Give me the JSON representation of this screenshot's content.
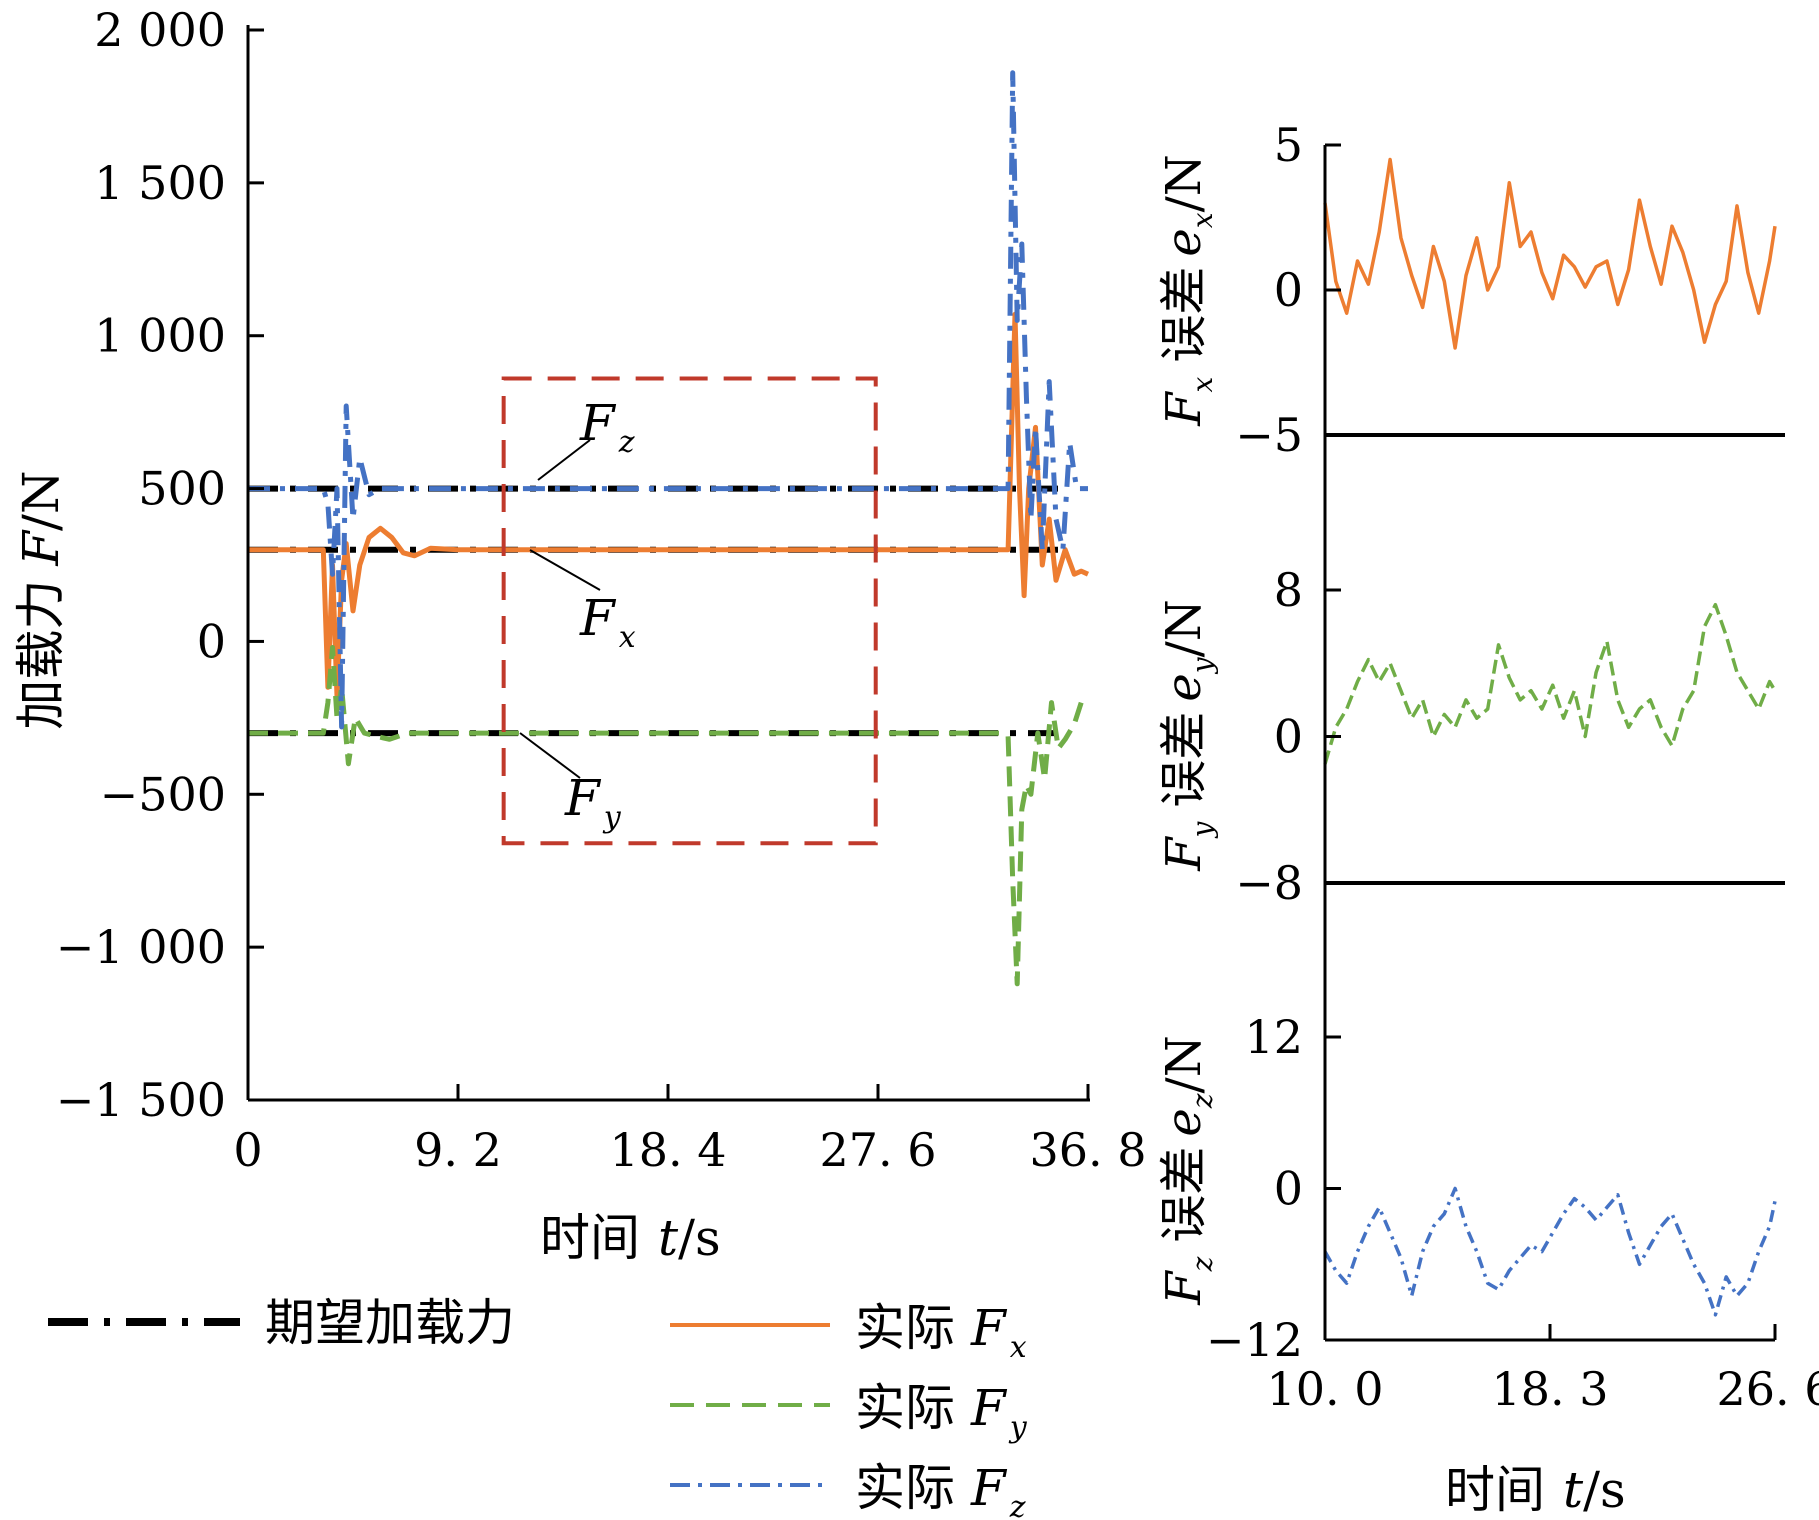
{
  "colors": {
    "desired": "#000000",
    "fx": "#ED7D31",
    "fy": "#70AD47",
    "fz": "#4472C4",
    "highlight_box": "#C0392B"
  },
  "chart_data": [
    {
      "type": "line",
      "xlabel": "时间 t/s",
      "ylabel": "加载力 F/N",
      "xlim": [
        0,
        36.8
      ],
      "ylim": [
        -1500,
        2000
      ],
      "xticks": [
        0,
        9.2,
        18.4,
        27.6,
        36.8
      ],
      "xtick_labels": [
        "0",
        "9. 2",
        "18. 4",
        "27. 6",
        "36. 8"
      ],
      "yticks": [
        2000,
        1500,
        1000,
        500,
        0,
        -500,
        -1000,
        -1500
      ],
      "ytick_labels": [
        "2 000",
        "1 500",
        "1 000",
        "500",
        "0",
        "−500",
        "−1 000",
        "−1 500"
      ],
      "annotations": [
        "F_z",
        "F_x",
        "F_y"
      ],
      "highlight_region": {
        "x": [
          11.2,
          27.5
        ],
        "y": [
          -660,
          860
        ]
      },
      "series": [
        {
          "name": "期望加载力",
          "style": "dash-dot",
          "color": "#000000",
          "segments": [
            {
              "x": [
                0,
                35.6
              ],
              "y": [
                500,
                500
              ]
            },
            {
              "x": [
                0,
                35.6
              ],
              "y": [
                300,
                300
              ]
            },
            {
              "x": [
                0,
                35.6
              ],
              "y": [
                -300,
                -300
              ]
            }
          ]
        },
        {
          "name": "实际 F_x",
          "style": "solid",
          "color": "#ED7D31",
          "x": [
            0,
            3.3,
            3.5,
            3.7,
            3.9,
            4.1,
            4.3,
            4.6,
            4.9,
            5.3,
            5.8,
            6.3,
            6.8,
            7.3,
            8.0,
            9.2,
            18.4,
            27.6,
            33.0,
            33.3,
            33.6,
            33.8,
            34.0,
            34.2,
            34.5,
            34.8,
            35.1,
            35.4,
            35.8,
            36.2,
            36.5,
            36.8
          ],
          "y": [
            300,
            300,
            -150,
            250,
            -180,
            200,
            320,
            100,
            250,
            340,
            370,
            340,
            290,
            280,
            305,
            300,
            300,
            300,
            300,
            300,
            1070,
            500,
            150,
            500,
            700,
            250,
            400,
            200,
            300,
            220,
            230,
            220
          ]
        },
        {
          "name": "实际 F_y",
          "style": "dashed",
          "color": "#70AD47",
          "x": [
            0,
            3.3,
            3.5,
            3.7,
            3.9,
            4.1,
            4.4,
            4.7,
            5.1,
            5.6,
            6.2,
            7.0,
            9.2,
            18.4,
            27.6,
            33.0,
            33.3,
            33.5,
            33.7,
            33.9,
            34.1,
            34.3,
            34.6,
            34.9,
            35.2,
            35.5,
            35.8,
            36.2,
            36.5
          ],
          "y": [
            -300,
            -300,
            -200,
            -20,
            -250,
            -150,
            -400,
            -250,
            -300,
            -310,
            -320,
            -300,
            -300,
            -300,
            -300,
            -300,
            -310,
            -780,
            -1120,
            -550,
            -470,
            -500,
            -300,
            -450,
            -200,
            -350,
            -320,
            -270,
            -200
          ]
        },
        {
          "name": "实际 F_z",
          "style": "dash-dot",
          "color": "#4472C4",
          "x": [
            0,
            3.3,
            3.5,
            3.7,
            3.9,
            4.1,
            4.3,
            4.6,
            4.9,
            5.3,
            5.8,
            6.5,
            9.2,
            18.4,
            27.6,
            33.0,
            33.3,
            33.5,
            33.7,
            33.9,
            34.1,
            34.3,
            34.5,
            34.8,
            35.1,
            35.4,
            35.7,
            36.0,
            36.3,
            36.8
          ],
          "y": [
            500,
            500,
            450,
            220,
            500,
            -280,
            770,
            400,
            600,
            480,
            500,
            500,
            500,
            500,
            500,
            500,
            500,
            1860,
            1050,
            1300,
            800,
            400,
            700,
            300,
            850,
            400,
            300,
            650,
            500,
            500
          ]
        }
      ]
    },
    {
      "type": "line",
      "ylabel": "F_x 误差 e_x/N",
      "ylim": [
        -5,
        5
      ],
      "yticks": [
        5,
        0,
        -5
      ],
      "ytick_labels": [
        "5",
        "0",
        "−5"
      ],
      "series": [
        {
          "name": "",
          "style": "solid",
          "color": "#ED7D31",
          "x": [
            10.0,
            10.4,
            10.8,
            11.2,
            11.6,
            12.0,
            12.4,
            12.8,
            13.2,
            13.6,
            14.0,
            14.4,
            14.8,
            15.2,
            15.6,
            16.0,
            16.4,
            16.8,
            17.2,
            17.6,
            18.0,
            18.4,
            18.8,
            19.2,
            19.6,
            20.0,
            20.4,
            20.8,
            21.2,
            21.6,
            22.0,
            22.4,
            22.8,
            23.2,
            23.6,
            24.0,
            24.4,
            24.8,
            25.2,
            25.6,
            26.0,
            26.4,
            26.6
          ],
          "y": [
            3.0,
            0.3,
            -0.8,
            1.0,
            0.2,
            2.0,
            4.5,
            1.8,
            0.5,
            -0.6,
            1.5,
            0.3,
            -2.0,
            0.5,
            1.8,
            0.0,
            0.8,
            3.7,
            1.5,
            2.0,
            0.6,
            -0.3,
            1.2,
            0.8,
            0.1,
            0.8,
            1.0,
            -0.5,
            0.7,
            3.1,
            1.5,
            0.2,
            2.2,
            1.3,
            0.0,
            -1.8,
            -0.5,
            0.3,
            2.9,
            0.6,
            -0.8,
            1.0,
            2.2
          ]
        }
      ]
    },
    {
      "type": "line",
      "ylabel": "F_y 误差 e_y/N",
      "ylim": [
        -8,
        8
      ],
      "yticks": [
        8,
        0,
        -8
      ],
      "ytick_labels": [
        "8",
        "0",
        "−8"
      ],
      "series": [
        {
          "name": "",
          "style": "dashed",
          "color": "#70AD47",
          "x": [
            10.0,
            10.4,
            10.8,
            11.2,
            11.6,
            12.0,
            12.4,
            12.8,
            13.2,
            13.6,
            14.0,
            14.4,
            14.8,
            15.2,
            15.6,
            16.0,
            16.4,
            16.8,
            17.2,
            17.6,
            18.0,
            18.4,
            18.8,
            19.2,
            19.6,
            20.0,
            20.4,
            20.8,
            21.2,
            21.6,
            22.0,
            22.4,
            22.8,
            23.2,
            23.6,
            24.0,
            24.4,
            24.8,
            25.2,
            25.6,
            26.0,
            26.4,
            26.6
          ],
          "y": [
            -1.5,
            0.5,
            1.5,
            3.0,
            4.2,
            3.0,
            4.0,
            2.5,
            1.0,
            2.0,
            0.0,
            1.2,
            0.5,
            2.0,
            1.0,
            1.5,
            5.0,
            3.2,
            2.0,
            2.5,
            1.5,
            2.8,
            1.0,
            2.5,
            0.0,
            3.5,
            5.2,
            2.0,
            0.5,
            1.5,
            2.0,
            0.5,
            -0.5,
            1.5,
            2.5,
            6.0,
            7.2,
            5.5,
            3.5,
            2.5,
            1.5,
            3.0,
            2.5
          ]
        }
      ]
    },
    {
      "type": "line",
      "ylabel": "F_z 误差 e_z/N",
      "ylim": [
        -12,
        12
      ],
      "yticks": [
        12,
        0,
        -12
      ],
      "ytick_labels": [
        "12",
        "0",
        "−12"
      ],
      "xlabel": "时间 t/s",
      "xlim": [
        10.0,
        26.6
      ],
      "xticks": [
        10.0,
        18.3,
        26.6
      ],
      "xtick_labels": [
        "10. 0",
        "18. 3",
        "26. 6"
      ],
      "series": [
        {
          "name": "",
          "style": "dash-dot",
          "color": "#4472C4",
          "x": [
            10.0,
            10.4,
            10.8,
            11.2,
            11.6,
            12.0,
            12.4,
            12.8,
            13.2,
            13.6,
            14.0,
            14.4,
            14.8,
            15.2,
            15.6,
            16.0,
            16.4,
            16.8,
            17.2,
            17.6,
            18.0,
            18.4,
            18.8,
            19.2,
            19.6,
            20.0,
            20.4,
            20.8,
            21.2,
            21.6,
            22.0,
            22.4,
            22.8,
            23.2,
            23.6,
            24.0,
            24.4,
            24.8,
            25.2,
            25.6,
            26.0,
            26.4,
            26.6
          ],
          "y": [
            -5.0,
            -6.5,
            -7.5,
            -5.0,
            -3.0,
            -1.5,
            -3.5,
            -5.5,
            -8.5,
            -5.0,
            -3.0,
            -2.0,
            0.0,
            -3.0,
            -5.0,
            -7.5,
            -8.0,
            -6.5,
            -5.5,
            -4.5,
            -5.0,
            -3.5,
            -2.0,
            -0.8,
            -1.5,
            -2.5,
            -1.5,
            -0.5,
            -3.5,
            -6.0,
            -4.5,
            -3.0,
            -2.0,
            -4.0,
            -6.0,
            -7.5,
            -10.0,
            -7.0,
            -8.5,
            -7.5,
            -5.0,
            -3.0,
            -1.0
          ]
        }
      ]
    }
  ],
  "legend": {
    "items": [
      {
        "label": "期望加载力",
        "style": "dash-dot",
        "color": "#000000"
      },
      {
        "label": "实际 F_x",
        "style": "solid",
        "color": "#ED7D31"
      },
      {
        "label": "实际 F_y",
        "style": "dashed",
        "color": "#70AD47"
      },
      {
        "label": "实际 F_z",
        "style": "dash-dot",
        "color": "#4472C4"
      }
    ]
  },
  "text": {
    "main_xlabel_text": "时间",
    "main_xlabel_var": "t",
    "main_xlabel_unit": "/s",
    "main_ylabel_text": "加载力",
    "main_ylabel_var": "F",
    "main_ylabel_unit": "/N",
    "ann_fz_F": "F",
    "ann_fz_sub": "z",
    "ann_fx_F": "F",
    "ann_fx_sub": "x",
    "ann_fy_F": "F",
    "ann_fy_sub": "y",
    "legend_desired": "期望加载力",
    "legend_actual": "实际",
    "legend_F": "F",
    "legend_sub_x": "x",
    "legend_sub_y": "y",
    "legend_sub_z": "z",
    "ex_F": "F",
    "ex_sub": "x",
    "ex_mid": "误差",
    "ex_e": "e",
    "ex_unit": "/N",
    "ey_F": "F",
    "ey_sub": "y",
    "ey_mid": "误差",
    "ey_e": "e",
    "ey_unit": "/N",
    "ez_F": "F",
    "ez_sub": "z",
    "ez_mid": "误差",
    "ez_e": "e",
    "ez_unit": "/N",
    "side_xlabel_text": "时间",
    "side_xlabel_var": "t",
    "side_xlabel_unit": "/s"
  }
}
